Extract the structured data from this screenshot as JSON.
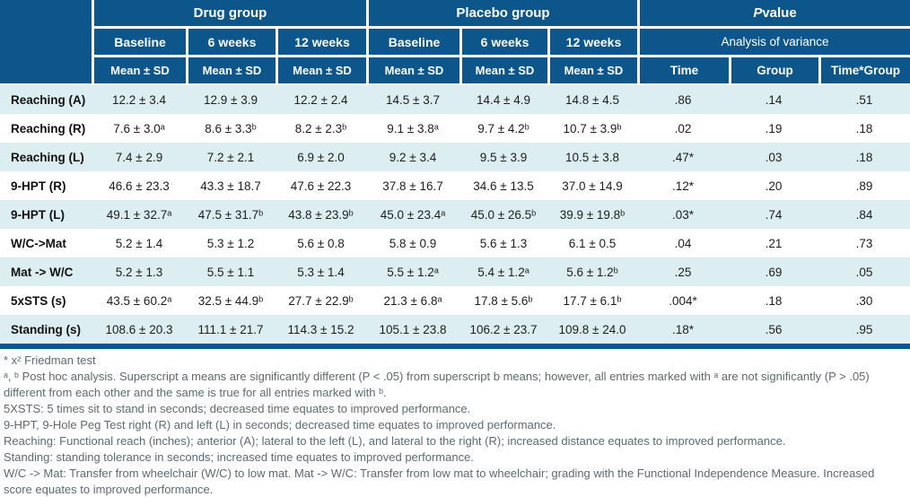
{
  "table": {
    "header": {
      "drug_group": "Drug group",
      "placebo_group": "Placebo group",
      "p_italic": "P",
      "p_rest": " value",
      "sub": [
        "Baseline",
        "6 weeks",
        "12 weeks",
        "Baseline",
        "6 weeks",
        "12 weeks"
      ],
      "anova": "Analysis of variance",
      "mean_sd": "Mean ± SD",
      "p_cols": [
        "Time",
        "Group",
        "Time*Group"
      ]
    },
    "rows": [
      {
        "label": "Reaching (A)",
        "cells": [
          "12.2 ± 3.4",
          "12.9 ± 3.9",
          "12.2 ± 2.4",
          "14.5 ± 3.7",
          "14.4 ± 4.9",
          "14.8 ± 4.5",
          ".86",
          ".14",
          ".51"
        ]
      },
      {
        "label": "Reaching (R)",
        "cells": [
          "7.6 ± 3.0ᵃ",
          "8.6 ± 3.3ᵇ",
          "8.2 ± 2.3ᵇ",
          "9.1 ± 3.8ᵃ",
          "9.7 ± 4.2ᵇ",
          "10.7 ± 3.9ᵇ",
          ".02",
          ".19",
          ".18"
        ]
      },
      {
        "label": "Reaching (L)",
        "cells": [
          "7.4 ± 2.9",
          "7.2 ± 2.1",
          "6.9 ± 2.0",
          "9.2 ± 3.4",
          "9.5 ± 3.9",
          "10.5 ± 3.8",
          ".47*",
          ".03",
          ".18"
        ]
      },
      {
        "label": "9-HPT (R)",
        "cells": [
          "46.6 ± 23.3",
          "43.3 ± 18.7",
          "47.6 ± 22.3",
          "37.8 ± 16.7",
          "34.6 ± 13.5",
          "37.0 ± 14.9",
          ".12*",
          ".20",
          ".89"
        ]
      },
      {
        "label": "9-HPT (L)",
        "cells": [
          "49.1 ± 32.7ᵃ",
          "47.5 ± 31.7ᵇ",
          "43.8 ± 23.9ᵇ",
          "45.0 ± 23.4ᵃ",
          "45.0 ± 26.5ᵇ",
          "39.9 ± 19.8ᵇ",
          ".03*",
          ".74",
          ".84"
        ]
      },
      {
        "label": "W/C->Mat",
        "cells": [
          "5.2 ± 1.4",
          "5.3 ± 1.2",
          "5.6 ± 0.8",
          "5.8 ± 0.9",
          "5.6 ± 1.3",
          "6.1 ± 0.5",
          ".04",
          ".21",
          ".73"
        ]
      },
      {
        "label": "Mat -> W/C",
        "cells": [
          "5.2 ± 1.3",
          "5.5 ± 1.1",
          "5.3 ± 1.4",
          "5.5 ± 1.2ᵃ",
          "5.4 ± 1.2ᵃ",
          "5.6 ± 1.2ᵇ",
          ".25",
          ".69",
          ".05"
        ]
      },
      {
        "label": "5xSTS (s)",
        "cells": [
          "43.5 ± 60.2ᵃ",
          "32.5 ± 44.9ᵇ",
          "27.7 ± 22.9ᵇ",
          "21.3 ± 6.8ᵃ",
          "17.8 ± 5.6ᵇ",
          "17.7 ± 6.1ᵇ",
          ".004*",
          ".18",
          ".30"
        ]
      },
      {
        "label": "Standing (s)",
        "cells": [
          "108.6 ± 20.3",
          "111.1 ± 21.7",
          "114.3 ± 15.2",
          "105.1 ± 23.8",
          "106.2 ± 23.7",
          "109.8 ± 24.0",
          ".18*",
          ".56",
          ".95"
        ]
      }
    ]
  },
  "footnotes": [
    "* x² Friedman test",
    "ᵃ, ᵇ Post hoc analysis. Superscript a means are significantly different (P < .05) from superscript b means; however, all entries marked with ᵃ are not significantly (P > .05) different from each other and the same is true for all entries marked with ᵇ.",
    "5XSTS: 5 times sit to stand in seconds; decreased time equates to improved performance.",
    "9-HPT, 9-Hole Peg Test right (R) and left (L) in seconds; decreased time equates to improved performance.",
    "Reaching: Functional reach (inches); anterior (A); lateral to the left (L), and lateral to the right (R); increased distance equates to improved performance.",
    "Standing: standing tolerance in seconds; increased time equates to improved performance.",
    "W/C -> Mat: Transfer from wheelchair (W/C) to low mat. Mat -> W/C: Transfer from low mat to wheelchair; grading with the Functional Independence Measure. Increased score equates to improved performance."
  ],
  "colors": {
    "header_blue": "#0d568c",
    "stripe_blue": "#dceef2",
    "footnote_gray": "#5d6a72"
  }
}
